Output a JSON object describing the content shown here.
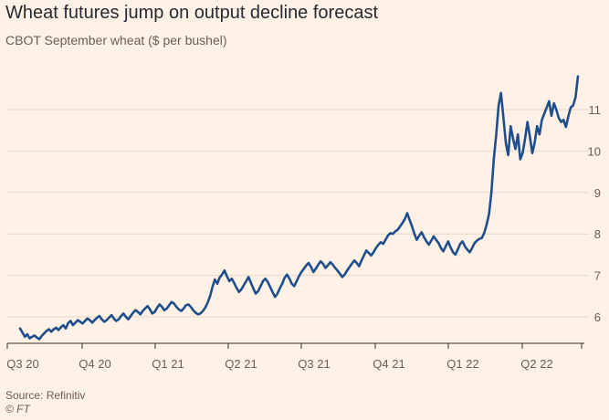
{
  "chart_data": {
    "type": "line",
    "title": "Wheat futures jump on output decline forecast",
    "subtitle": "CBOT September wheat ($ per bushel)",
    "xlabel": "",
    "ylabel": "",
    "x_tick_labels": [
      "Q3 20",
      "Q4 20",
      "Q1 21",
      "Q2 21",
      "Q3 21",
      "Q4 21",
      "Q1 22",
      "Q2 22"
    ],
    "y_ticks": [
      6,
      7,
      8,
      9,
      10,
      11
    ],
    "ylim": [
      5.3,
      12.0
    ],
    "grid": "horizontal",
    "legend": "none",
    "line_color": "#1f4e8c",
    "series": [
      {
        "values": [
          5.72,
          5.62,
          5.52,
          5.58,
          5.48,
          5.52,
          5.55,
          5.5,
          5.46,
          5.54,
          5.6,
          5.66,
          5.7,
          5.64,
          5.7,
          5.74,
          5.68,
          5.75,
          5.8,
          5.72,
          5.85,
          5.9,
          5.8,
          5.86,
          5.92,
          5.88,
          5.84,
          5.9,
          5.96,
          5.92,
          5.86,
          5.92,
          5.98,
          6.02,
          5.94,
          5.88,
          5.92,
          5.98,
          6.04,
          5.96,
          5.9,
          5.94,
          6.02,
          6.08,
          6.0,
          5.94,
          6.02,
          6.1,
          6.16,
          6.12,
          6.06,
          6.14,
          6.2,
          6.26,
          6.18,
          6.08,
          6.12,
          6.22,
          6.3,
          6.24,
          6.16,
          6.2,
          6.28,
          6.36,
          6.32,
          6.24,
          6.18,
          6.14,
          6.2,
          6.28,
          6.3,
          6.24,
          6.16,
          6.1,
          6.06,
          6.08,
          6.14,
          6.22,
          6.34,
          6.5,
          6.72,
          6.9,
          6.8,
          6.95,
          7.02,
          7.12,
          6.98,
          6.86,
          6.92,
          6.82,
          6.7,
          6.6,
          6.66,
          6.76,
          6.86,
          6.96,
          6.82,
          6.68,
          6.56,
          6.62,
          6.74,
          6.86,
          6.92,
          6.84,
          6.72,
          6.6,
          6.48,
          6.56,
          6.68,
          6.8,
          6.94,
          7.02,
          6.92,
          6.8,
          6.74,
          6.86,
          6.98,
          7.08,
          7.16,
          7.24,
          7.3,
          7.2,
          7.08,
          7.16,
          7.26,
          7.34,
          7.28,
          7.18,
          7.24,
          7.32,
          7.26,
          7.18,
          7.12,
          7.04,
          6.96,
          7.02,
          7.12,
          7.2,
          7.28,
          7.36,
          7.3,
          7.22,
          7.36,
          7.48,
          7.6,
          7.54,
          7.48,
          7.56,
          7.66,
          7.74,
          7.8,
          7.76,
          7.86,
          7.96,
          8.02,
          8.0,
          8.06,
          8.1,
          8.18,
          8.26,
          8.36,
          8.5,
          8.34,
          8.18,
          8.0,
          7.86,
          7.96,
          8.04,
          7.92,
          7.82,
          7.74,
          7.84,
          7.94,
          7.86,
          7.78,
          7.66,
          7.58,
          7.7,
          7.82,
          7.68,
          7.56,
          7.5,
          7.62,
          7.76,
          7.82,
          7.7,
          7.62,
          7.56,
          7.66,
          7.78,
          7.84,
          7.88,
          7.9,
          8.02,
          8.22,
          8.48,
          9.0,
          9.8,
          10.4,
          11.1,
          11.4,
          10.8,
          10.2,
          9.9,
          10.6,
          10.3,
          10.05,
          10.4,
          9.8,
          9.95,
          10.3,
          10.7,
          10.35,
          9.95,
          10.2,
          10.6,
          10.4,
          10.75,
          10.9,
          11.05,
          11.2,
          10.85,
          11.15,
          11.0,
          10.8,
          10.7,
          10.75,
          10.58,
          10.84,
          11.05,
          11.1,
          11.3,
          11.8
        ]
      }
    ],
    "source": "Source: Refinitiv",
    "credit": "© FT"
  }
}
